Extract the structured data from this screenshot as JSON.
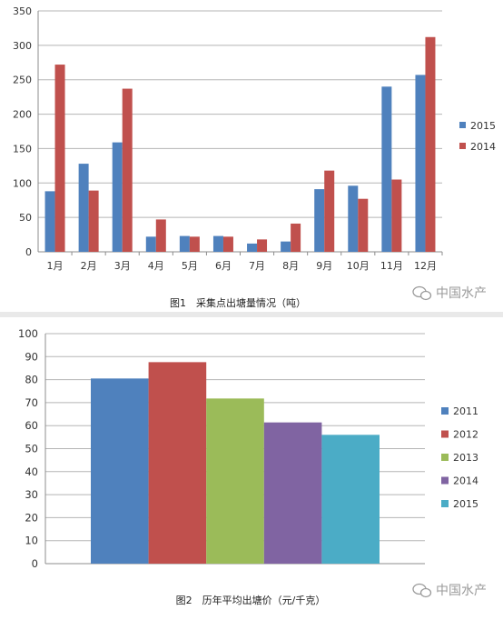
{
  "colors": {
    "grid": "#b5b5b5",
    "axis": "#8c8c8c",
    "watermark": "#9a9a9a"
  },
  "watermark": {
    "text": "中国水产",
    "icon": "wechat-bubble-icon"
  },
  "chart_data": [
    {
      "type": "bar",
      "title": "图1　采集点出塘量情况（吨）",
      "categories": [
        "1月",
        "2月",
        "3月",
        "4月",
        "5月",
        "6月",
        "7月",
        "8月",
        "9月",
        "10月",
        "11月",
        "12月"
      ],
      "series": [
        {
          "name": "2015",
          "color": "#4f81bd",
          "values": [
            88,
            128,
            159,
            22,
            23,
            23,
            12,
            15,
            91,
            96,
            240,
            257
          ]
        },
        {
          "name": "2014",
          "color": "#c0504d",
          "values": [
            272,
            89,
            237,
            47,
            22,
            22,
            18,
            41,
            118,
            77,
            105,
            312
          ]
        }
      ],
      "ylim": [
        0,
        350
      ],
      "yticks": [
        0,
        50,
        100,
        150,
        200,
        250,
        300,
        350
      ],
      "xlabel": "",
      "ylabel": "",
      "grid": true,
      "legend": "right"
    },
    {
      "type": "bar",
      "title": "图2　历年平均出塘价（元/千克）",
      "categories": [
        ""
      ],
      "series": [
        {
          "name": "2011",
          "color": "#4f81bd",
          "values": [
            80.5
          ]
        },
        {
          "name": "2012",
          "color": "#c0504d",
          "values": [
            87.6
          ]
        },
        {
          "name": "2013",
          "color": "#9bbb59",
          "values": [
            71.8
          ]
        },
        {
          "name": "2014",
          "color": "#8064a2",
          "values": [
            61.4
          ]
        },
        {
          "name": "2015",
          "color": "#4bacc6",
          "values": [
            56.0
          ]
        }
      ],
      "ylim": [
        0,
        100
      ],
      "yticks": [
        0,
        10,
        20,
        30,
        40,
        50,
        60,
        70,
        80,
        90,
        100
      ],
      "xlabel": "",
      "ylabel": "",
      "grid": true,
      "legend": "right"
    }
  ]
}
